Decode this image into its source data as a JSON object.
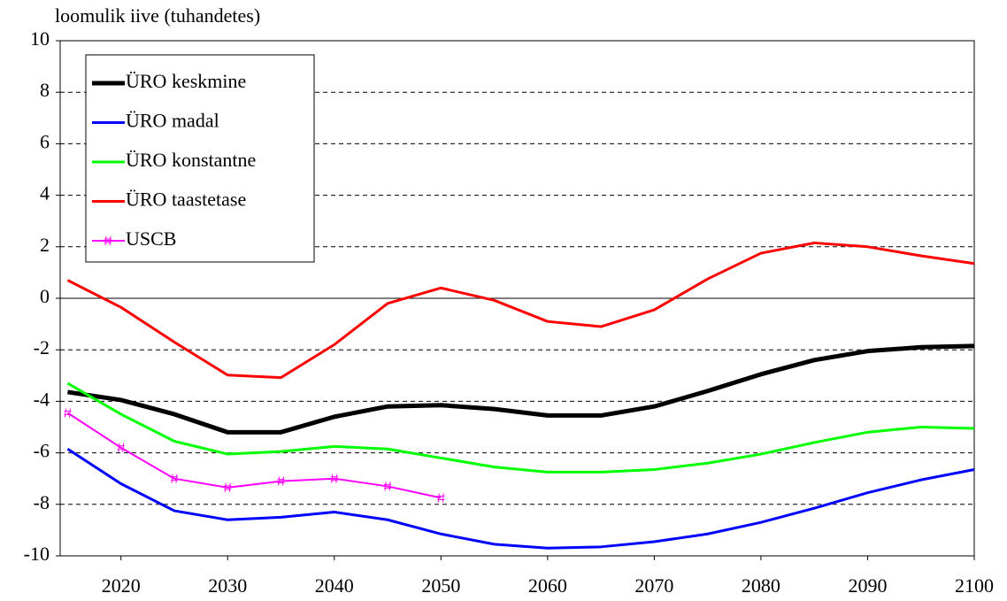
{
  "chart_data": {
    "type": "line",
    "y_label": "loomulik iive  (tuhandetes)",
    "x": [
      2015,
      2020,
      2025,
      2030,
      2035,
      2040,
      2045,
      2050,
      2055,
      2060,
      2065,
      2070,
      2075,
      2080,
      2085,
      2090,
      2095,
      2100
    ],
    "xlim": [
      2014.3,
      2100
    ],
    "xticks": [
      2020,
      2030,
      2040,
      2050,
      2060,
      2070,
      2080,
      2090,
      2100
    ],
    "ylim": [
      -10,
      10
    ],
    "yticks": [
      -10,
      -8,
      -6,
      -4,
      -2,
      0,
      2,
      4,
      6,
      8,
      10
    ],
    "grid": true,
    "legend": "upper left",
    "series": [
      {
        "name": "ÜRO keskmine",
        "color": "#000000",
        "width": 5,
        "values": [
          -3.64,
          -3.95,
          -4.5,
          -5.2,
          -5.2,
          -4.6,
          -4.2,
          -4.15,
          -4.3,
          -4.55,
          -4.55,
          -4.2,
          -3.6,
          -2.95,
          -2.4,
          -2.05,
          -1.9,
          -1.85
        ]
      },
      {
        "name": "ÜRO madal",
        "color": "#0000ff",
        "width": 3,
        "values": [
          -5.85,
          -7.2,
          -8.25,
          -8.6,
          -8.5,
          -8.3,
          -8.6,
          -9.15,
          -9.55,
          -9.7,
          -9.65,
          -9.45,
          -9.15,
          -8.7,
          -8.15,
          -7.55,
          -7.05,
          -6.65
        ]
      },
      {
        "name": "ÜRO konstantne",
        "color": "#00ff00",
        "width": 3,
        "values": [
          -3.3,
          -4.5,
          -5.55,
          -6.05,
          -5.95,
          -5.75,
          -5.85,
          -6.2,
          -6.55,
          -6.75,
          -6.75,
          -6.65,
          -6.4,
          -6.05,
          -5.6,
          -5.2,
          -5.0,
          -5.05
        ]
      },
      {
        "name": "ÜRO taastetase",
        "color": "#ff0000",
        "width": 3,
        "values": [
          0.7,
          -0.35,
          -1.7,
          -2.98,
          -3.08,
          -1.8,
          -0.2,
          0.4,
          -0.08,
          -0.9,
          -1.1,
          -0.45,
          0.75,
          1.75,
          2.15,
          2.0,
          1.65,
          1.35
        ]
      },
      {
        "name": "USCB",
        "color": "#ff00ff",
        "width": 2,
        "marker": true,
        "values": [
          -4.45,
          -5.8,
          -7.0,
          -7.35,
          -7.1,
          -7.0,
          -7.3,
          -7.75,
          null,
          null,
          null,
          null,
          null,
          null,
          null,
          null,
          null,
          null
        ]
      }
    ]
  }
}
